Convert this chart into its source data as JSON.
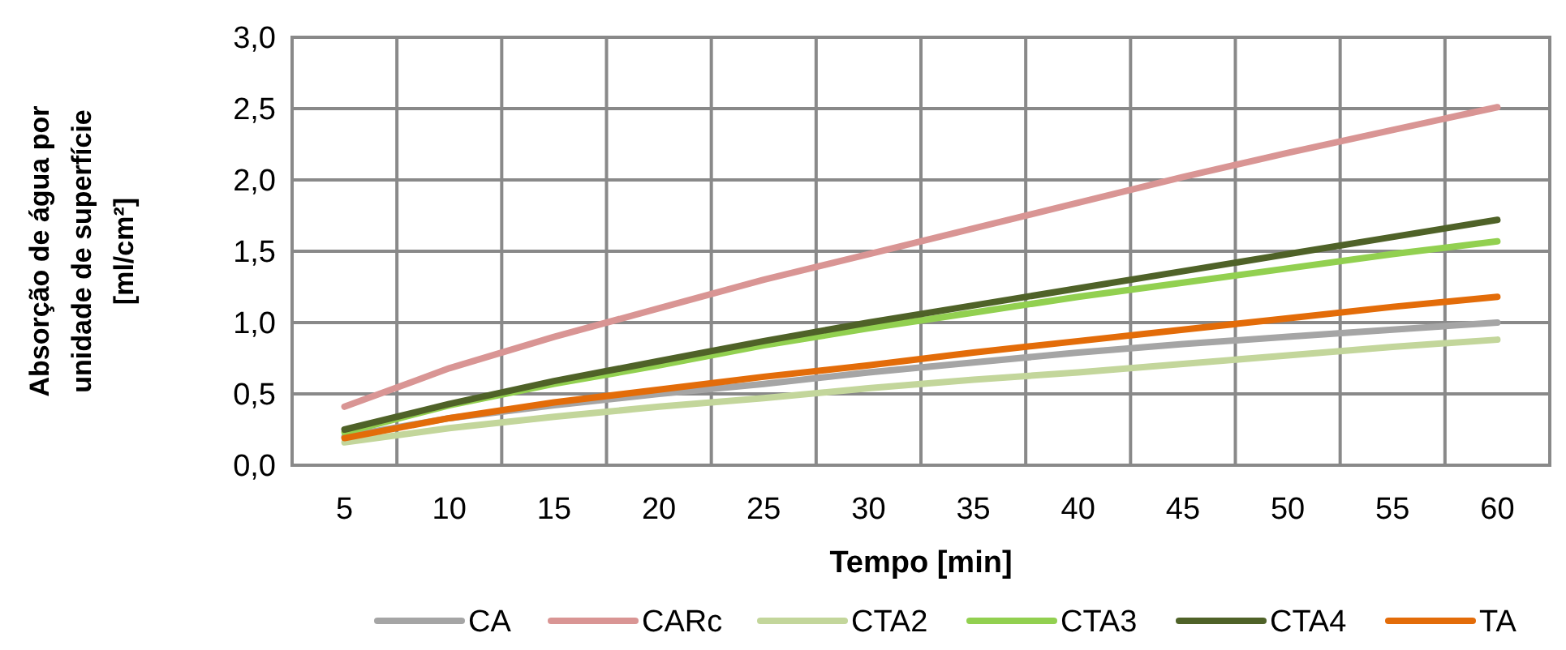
{
  "chart_data": {
    "type": "line",
    "xlabel": "Tempo [min]",
    "ylabel": "Absorção de água por\nunidade de superfície\n[ml/cm²]",
    "categories": [
      "5",
      "10",
      "15",
      "20",
      "25",
      "30",
      "35",
      "40",
      "45",
      "50",
      "55",
      "60"
    ],
    "ylim": [
      0,
      3
    ],
    "yticks": [
      {
        "value": 0,
        "label": "0,0"
      },
      {
        "value": 0.5,
        "label": "0,5"
      },
      {
        "value": 1,
        "label": "1,0"
      },
      {
        "value": 1.5,
        "label": "1,5"
      },
      {
        "value": 2,
        "label": "2,0"
      },
      {
        "value": 2.5,
        "label": "2,5"
      },
      {
        "value": 3,
        "label": "3,0"
      }
    ],
    "grid": true,
    "legend": "bottom",
    "marker": "none",
    "line_style": "solid",
    "series": [
      {
        "name": "CA",
        "color": "#a5a5a5",
        "values": [
          0.2,
          0.33,
          0.42,
          0.5,
          0.57,
          0.65,
          0.72,
          0.79,
          0.85,
          0.9,
          0.95,
          1.0
        ]
      },
      {
        "name": "CARc",
        "color": "#d99594",
        "values": [
          0.41,
          0.68,
          0.9,
          1.1,
          1.3,
          1.48,
          1.66,
          1.84,
          2.02,
          2.19,
          2.35,
          2.51
        ]
      },
      {
        "name": "CTA2",
        "color": "#c3d69b",
        "values": [
          0.16,
          0.26,
          0.34,
          0.41,
          0.47,
          0.54,
          0.6,
          0.65,
          0.71,
          0.77,
          0.83,
          0.88
        ]
      },
      {
        "name": "CTA3",
        "color": "#92d050",
        "values": [
          0.23,
          0.42,
          0.57,
          0.7,
          0.84,
          0.96,
          1.07,
          1.18,
          1.28,
          1.38,
          1.48,
          1.57
        ]
      },
      {
        "name": "CTA4",
        "color": "#4f6228",
        "values": [
          0.25,
          0.43,
          0.59,
          0.73,
          0.87,
          1.0,
          1.12,
          1.24,
          1.36,
          1.48,
          1.6,
          1.72
        ]
      },
      {
        "name": "TA",
        "color": "#e36c09",
        "values": [
          0.19,
          0.33,
          0.44,
          0.53,
          0.62,
          0.7,
          0.79,
          0.87,
          0.95,
          1.03,
          1.11,
          1.18
        ]
      }
    ]
  }
}
